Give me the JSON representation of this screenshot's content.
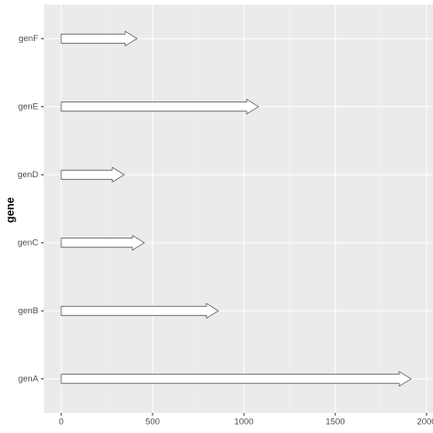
{
  "chart_data": {
    "type": "gene_arrow",
    "y_label": "gene",
    "categories": [
      "genA",
      "genB",
      "genC",
      "genD",
      "genE",
      "genF"
    ],
    "starts": [
      0,
      0,
      0,
      0,
      0,
      0
    ],
    "values": [
      1915,
      860,
      455,
      345,
      1080,
      415
    ],
    "color": "#ffffff",
    "stroke": "#444444",
    "xlim": [
      -95,
      2035
    ],
    "xticks": [
      0,
      500,
      1000,
      1500,
      2000
    ],
    "grid": true
  }
}
